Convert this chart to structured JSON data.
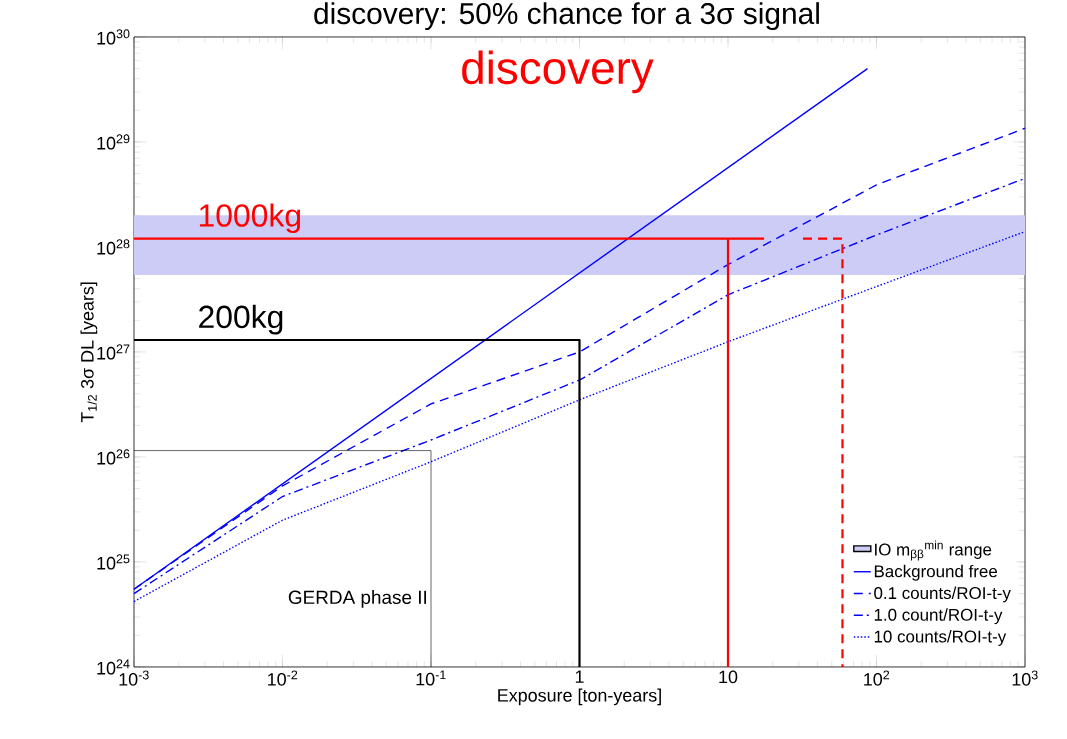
{
  "chart_data": {
    "type": "line",
    "title": "discovery: 50% chance for a 3σ signal",
    "subtitle": "discovery",
    "xlabel": "Exposure [ton-years]",
    "ylabel": "T$_{1/2}$ 3σ DL [years]",
    "log": "xy",
    "legend": "bottom right",
    "grid": false,
    "xlim": [
      0.001,
      1000
    ],
    "ylim": [
      1e+24,
      1e+30
    ],
    "xticks": [
      {
        "value": 0.001,
        "label": "10$^{-3}$"
      },
      {
        "value": 0.01,
        "label": "10$^{-2}$"
      },
      {
        "value": 0.1,
        "label": "10$^{-1}$"
      },
      1,
      10,
      {
        "value": 100,
        "label": "10$^{2}$"
      },
      {
        "value": 1000,
        "label": "10$^{3}$"
      }
    ],
    "yticks": [
      {
        "value": 1e+24,
        "label": "10$^{24}$"
      },
      {
        "value": 1e+25,
        "label": "10$^{25}$"
      },
      {
        "value": 1e+26,
        "label": "10$^{26}$"
      },
      {
        "value": 1e+27,
        "label": "10$^{27}$"
      },
      {
        "value": 1e+28,
        "label": "10$^{28}$"
      },
      {
        "value": 1e+29,
        "label": "10$^{29}$"
      },
      {
        "value": 1e+30,
        "label": "10$^{30}$"
      }
    ],
    "bands": [
      {
        "axis": "y",
        "from": 5.4e+27,
        "to": 2e+28,
        "label": "IO m$_{ββ}$$^{min}$ range",
        "color": "#ccccf7"
      }
    ],
    "series": [
      {
        "name": "Background free",
        "color": "#0000ff",
        "line_style": "solid",
        "x": [
          0.001,
          87
        ],
        "values": [
          5.5e+24,
          5e+29
        ]
      },
      {
        "name": "0.1 counts/ROI-t-y",
        "color": "#0000ff",
        "line_style": "dashed",
        "x": [
          0.001,
          0.01,
          0.1,
          1,
          10,
          100,
          1000
        ],
        "values": [
          5.5e+24,
          5.3e+25,
          3.2e+26,
          1e+27,
          6.8e+27,
          3.9e+28,
          1.35e+29
        ]
      },
      {
        "name": "1.0 count/ROI-t-y",
        "color": "#0000ff",
        "line_style": "dashdot",
        "x": [
          0.001,
          0.01,
          0.1,
          1,
          10,
          100,
          1000
        ],
        "values": [
          5e+24,
          4.2e+25,
          1.45e+26,
          5.4e+26,
          3.5e+27,
          1.3e+28,
          4.5e+28
        ]
      },
      {
        "name": "10 counts/ROI-t-y",
        "color": "#0000ff",
        "line_style": "dotted",
        "x": [
          0.001,
          0.01,
          0.1,
          1,
          10,
          100,
          1000
        ],
        "values": [
          4.2e+24,
          2.5e+25,
          9e+25,
          3.5e+26,
          1.25e+27,
          4.2e+27,
          1.4e+28
        ]
      },
      {
        "name": "1000kg",
        "color": "#ff0000",
        "line_style": "solid",
        "x": [
          0.001,
          17.5
        ],
        "values": [
          1.2e+28,
          1.2e+28
        ]
      },
      {
        "color": "#ff0000",
        "line_style": "solid",
        "x": [
          10,
          10
        ],
        "values": [
          1.2e+28,
          1e+24
        ]
      },
      {
        "color": "#ff0000",
        "line_style": "dashed",
        "x": [
          32,
          59,
          59
        ],
        "values": [
          1.2e+28,
          1.2e+28,
          1e+24
        ]
      },
      {
        "name": "200kg",
        "color": "#000000",
        "line_style": "solid",
        "x": [
          0.001,
          1,
          1
        ],
        "values": [
          1.3e+27,
          1.3e+27,
          1e+24
        ]
      },
      {
        "name": "GERDA phase II",
        "color": "#000000",
        "line_style": "solid",
        "x": [
          0.001,
          0.1,
          0.1
        ],
        "values": [
          1.15e+26,
          1.15e+26,
          1e+24
        ]
      }
    ]
  }
}
